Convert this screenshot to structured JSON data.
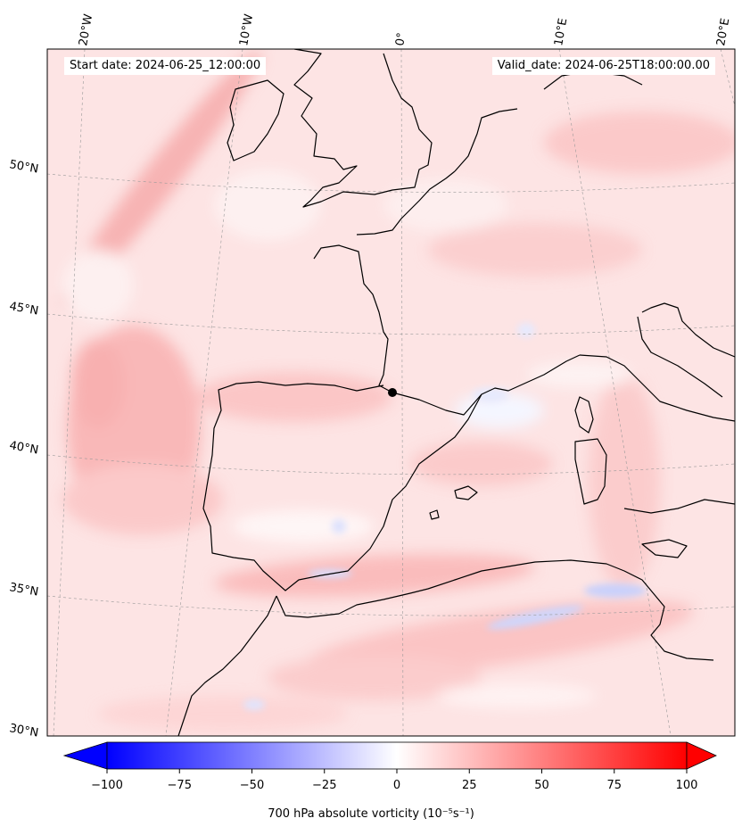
{
  "header": {
    "start_date": "Start date: 2024-06-25_12:00:00",
    "valid_date": "Valid_date: 2024-06-25T18:00:00.00"
  },
  "map": {
    "projection": "conic",
    "lon_labels": [
      "20°W",
      "10°W",
      "0°",
      "10°E",
      "20°E"
    ],
    "lat_labels": [
      "50°N",
      "45°N",
      "40°N",
      "35°N",
      "30°N"
    ],
    "coastline_color": "#000000",
    "gridlines": true,
    "marker": {
      "label": "point marker",
      "color": "#000000"
    }
  },
  "colorbar": {
    "cmap": "bwr",
    "vmin": -100,
    "vmax": 100,
    "extend": "both",
    "tick_labels": [
      "−100",
      "−75",
      "−50",
      "−25",
      "0",
      "25",
      "50",
      "75",
      "100"
    ],
    "title": "700 hPa absolute vorticity (10⁻⁵s⁻¹)"
  },
  "chart_data": {
    "type": "heatmap",
    "variable": "700 hPa absolute vorticity",
    "units": "10⁻⁵s⁻¹",
    "range": [
      -100,
      100
    ],
    "dominant_range": [
      5,
      25
    ],
    "colors": {
      "negative": "#0000ff",
      "zero": "#ffffff",
      "positive": "#ff0000"
    }
  }
}
